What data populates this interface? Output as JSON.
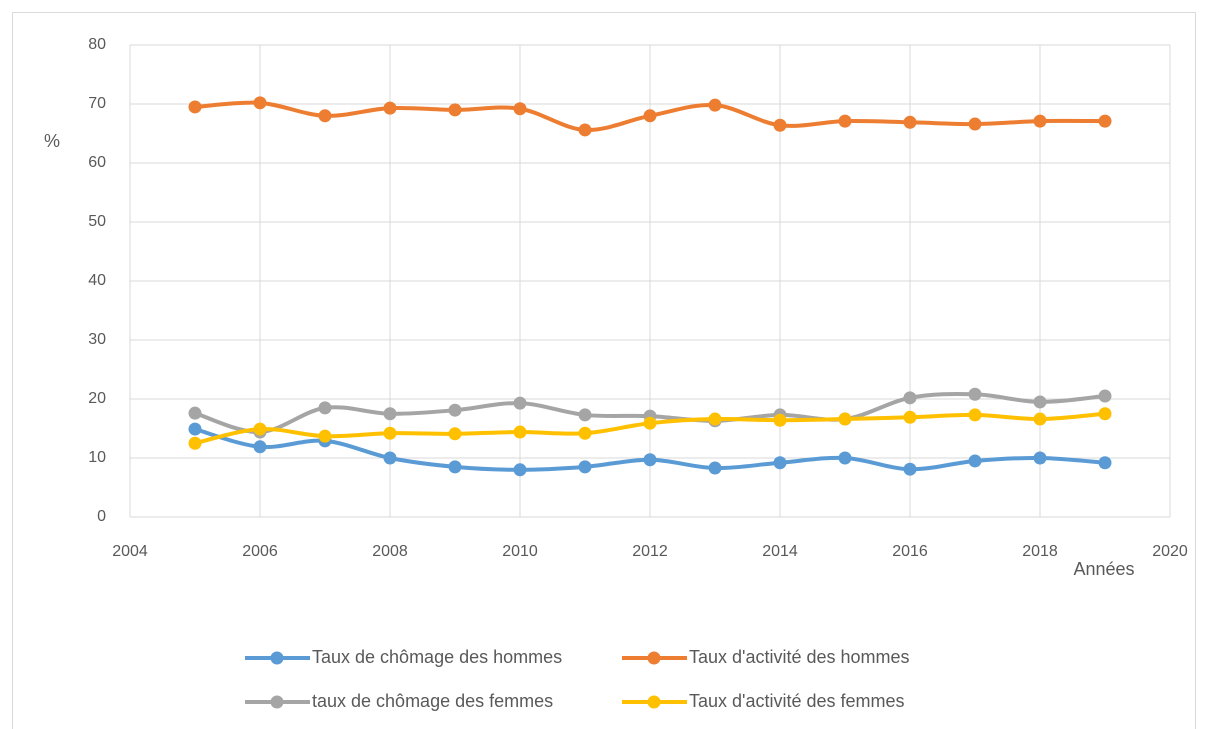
{
  "chart_data": {
    "type": "line",
    "x_label": "Années",
    "y_label": "%",
    "x": [
      2005,
      2006,
      2007,
      2008,
      2009,
      2010,
      2011,
      2012,
      2013,
      2014,
      2015,
      2016,
      2017,
      2018,
      2019
    ],
    "series": [
      {
        "name": "Taux de chômage des hommes",
        "color": "#5b9bd5",
        "values": [
          14.9,
          11.9,
          12.9,
          10.0,
          8.5,
          8.0,
          8.5,
          9.7,
          8.3,
          9.2,
          10.0,
          8.1,
          9.5,
          10.0,
          9.2
        ]
      },
      {
        "name": "Taux d'activité des hommes",
        "color": "#ed7d31",
        "values": [
          69.5,
          70.2,
          68.0,
          69.3,
          69.0,
          69.2,
          65.6,
          68.0,
          69.8,
          66.4,
          67.1,
          66.9,
          66.6,
          67.1,
          67.1
        ]
      },
      {
        "name": "taux de chômage des femmes",
        "color": "#a5a5a5",
        "values": [
          17.6,
          14.4,
          18.5,
          17.5,
          18.1,
          19.3,
          17.3,
          17.1,
          16.3,
          17.3,
          16.6,
          20.2,
          20.8,
          19.5,
          20.5
        ]
      },
      {
        "name": "Taux d'activité des femmes",
        "color": "#ffc000",
        "values": [
          12.5,
          14.9,
          13.7,
          14.2,
          14.1,
          14.4,
          14.2,
          15.9,
          16.6,
          16.4,
          16.6,
          16.9,
          17.3,
          16.6,
          17.5
        ]
      }
    ],
    "xlim": [
      2004,
      2020
    ],
    "xticks": [
      2004,
      2006,
      2008,
      2010,
      2012,
      2014,
      2016,
      2018,
      2020
    ],
    "ylim": [
      0,
      80
    ],
    "yticks": [
      0,
      10,
      20,
      30,
      40,
      50,
      60,
      70,
      80
    ],
    "grid": true
  }
}
